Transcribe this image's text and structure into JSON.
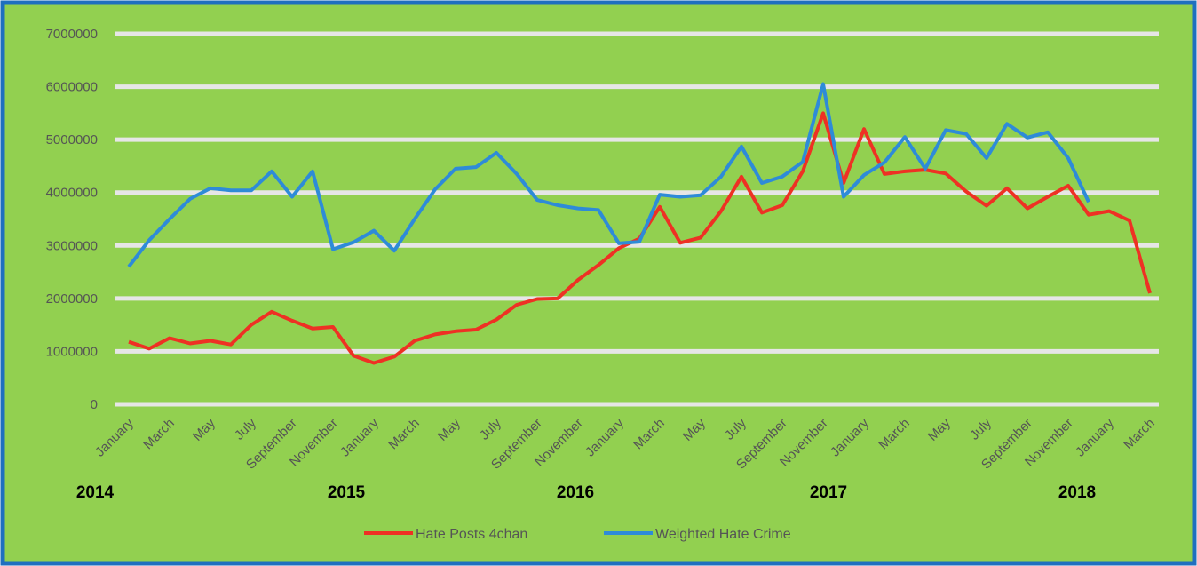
{
  "chart_data": {
    "type": "line",
    "categories": [
      "January",
      null,
      "March",
      null,
      "May",
      null,
      "July",
      null,
      "September",
      null,
      "November",
      null,
      "January",
      null,
      "March",
      null,
      "May",
      null,
      "July",
      null,
      "September",
      null,
      "November",
      null,
      "January",
      null,
      "March",
      null,
      "May",
      null,
      "July",
      null,
      "September",
      null,
      "November",
      null,
      "January",
      null,
      "March",
      null,
      "May",
      null,
      "July",
      null,
      "September",
      null,
      "November",
      null,
      "January",
      null,
      "March"
    ],
    "year_labels": [
      "2014",
      "2015",
      "2016",
      "2017",
      "2018"
    ],
    "series": [
      {
        "name": "Hate Posts 4chan",
        "color": "#ee3124",
        "values": [
          1180000,
          1050000,
          1250000,
          1150000,
          1200000,
          1130000,
          1500000,
          1750000,
          1580000,
          1430000,
          1460000,
          920000,
          780000,
          900000,
          1200000,
          1320000,
          1380000,
          1410000,
          1600000,
          1880000,
          1990000,
          2000000,
          2350000,
          2630000,
          2950000,
          3130000,
          3730000,
          3050000,
          3150000,
          3650000,
          4300000,
          3620000,
          3760000,
          4400000,
          5500000,
          4180000,
          5200000,
          4350000,
          4400000,
          4430000,
          4360000,
          4020000,
          3750000,
          4080000,
          3700000,
          3920000,
          4130000,
          3580000,
          3650000,
          3470000,
          2100000
        ]
      },
      {
        "name": "Weighted Hate Crime",
        "color": "#2e8bd8",
        "values": [
          2600000,
          3100000,
          3500000,
          3880000,
          4080000,
          4040000,
          4040000,
          4400000,
          3920000,
          4400000,
          2930000,
          3060000,
          3280000,
          2900000,
          3500000,
          4060000,
          4450000,
          4480000,
          4750000,
          4350000,
          3860000,
          3760000,
          3700000,
          3670000,
          3040000,
          3070000,
          3960000,
          3920000,
          3950000,
          4300000,
          4870000,
          4180000,
          4300000,
          4580000,
          6050000,
          3920000,
          4330000,
          4570000,
          5050000,
          4450000,
          5180000,
          5110000,
          4650000,
          5300000,
          5040000,
          5140000,
          4650000,
          3820000,
          null,
          null,
          null
        ]
      }
    ],
    "ylim": [
      0,
      7000000
    ],
    "yticks": [
      0,
      1000000,
      2000000,
      3000000,
      4000000,
      5000000,
      6000000,
      7000000
    ],
    "grid": true,
    "legend": "bottom"
  }
}
